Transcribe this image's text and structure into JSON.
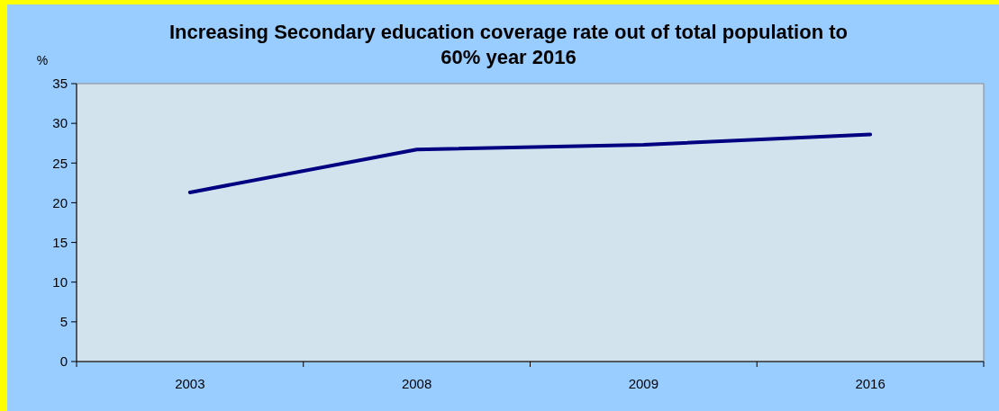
{
  "chart_data": {
    "type": "line",
    "title": "Increasing Secondary education coverage rate out of total population to 60% year 2016",
    "ylabel": "%",
    "categories": [
      "2003",
      "2008",
      "2009",
      "2016"
    ],
    "series": [
      {
        "color": "#000080",
        "values": [
          21.3,
          26.7,
          27.3,
          28.6
        ]
      }
    ],
    "ylim": [
      0,
      35
    ],
    "yticks": [
      0,
      5,
      10,
      15,
      20,
      25,
      30,
      35
    ],
    "grid": false,
    "marker": "none",
    "line_style": "solid"
  }
}
